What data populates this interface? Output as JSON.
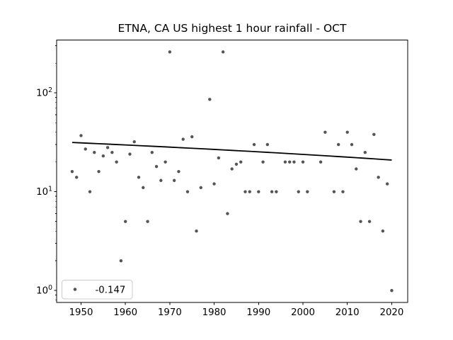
{
  "figure": {
    "background_color": "#ffffff"
  },
  "chart_data": {
    "type": "scatter",
    "title": "ETNA, CA US highest 1 hour rainfall - OCT",
    "xlabel": "",
    "ylabel": "",
    "xscale": "linear",
    "yscale": "log",
    "xlim": [
      1944.5,
      2023.6
    ],
    "ylim": [
      0.757,
      343
    ],
    "x_ticks": [
      1950,
      1960,
      1970,
      1980,
      1990,
      2000,
      2010,
      2020
    ],
    "y_major_ticks": [
      1,
      10,
      100
    ],
    "grid": false,
    "marker_color": "#555555",
    "trend_line_color": "#000000",
    "axis_color": "#000000",
    "legend": {
      "label": "-0.147",
      "location": "lower left",
      "border_color": "#cccccc",
      "background_color": "#ffffff"
    },
    "series": [
      {
        "name": "highest 1 hour rainfall",
        "x": [
          1948,
          1949,
          1950,
          1951,
          1952,
          1953,
          1954,
          1955,
          1956,
          1957,
          1958,
          1959,
          1960,
          1961,
          1962,
          1963,
          1964,
          1965,
          1966,
          1967,
          1968,
          1969,
          1970,
          1971,
          1972,
          1973,
          1974,
          1975,
          1976,
          1977,
          1979,
          1980,
          1981,
          1982,
          1983,
          1984,
          1985,
          1986,
          1987,
          1988,
          1989,
          1990,
          1991,
          1992,
          1993,
          1994,
          1996,
          1997,
          1998,
          1999,
          2000,
          2001,
          2004,
          2005,
          2007,
          2008,
          2009,
          2010,
          2011,
          2012,
          2013,
          2014,
          2015,
          2016,
          2017,
          2018,
          2019,
          2020
        ],
        "y": [
          16,
          14,
          37,
          27,
          10,
          25,
          16,
          23,
          28,
          25,
          20,
          2,
          5,
          24,
          32,
          14,
          11,
          5,
          25,
          18,
          13,
          20,
          260,
          13,
          16,
          34,
          10,
          36,
          4,
          11,
          86,
          12,
          22,
          260,
          6,
          17,
          19,
          20,
          10,
          10,
          30,
          10,
          20,
          30,
          10,
          10,
          20,
          20,
          20,
          10,
          20,
          10,
          20,
          40,
          10,
          30,
          10,
          40,
          30,
          17,
          5,
          25,
          5,
          38,
          14,
          4,
          12,
          1
        ]
      }
    ],
    "trend": {
      "label": "-0.147",
      "slope_per_year": -0.147,
      "x_start": 1948,
      "value_start": 31.5,
      "x_end": 2020,
      "value_end": 20.9
    }
  }
}
